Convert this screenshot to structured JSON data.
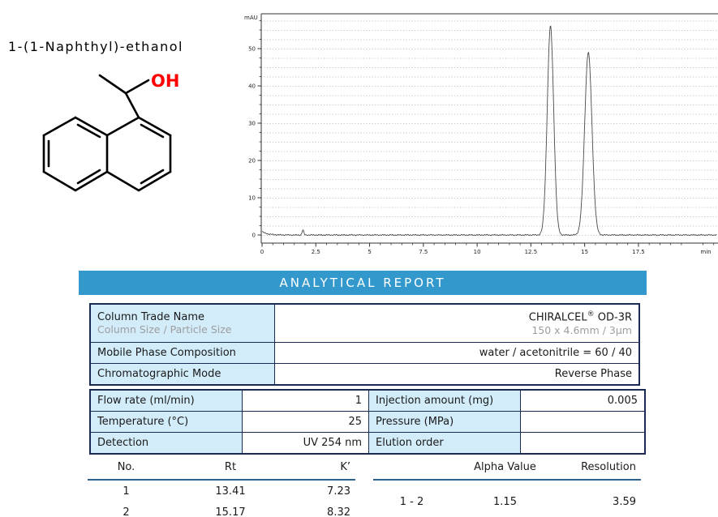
{
  "compound": {
    "title": "1-(1-Naphthyl)-ethanol",
    "hydroxyl_label": "OH",
    "hydroxyl_color": "#ff0000"
  },
  "chart_data": {
    "type": "line",
    "title": "",
    "xlabel": "min",
    "ylabel": "mAU",
    "xlim": [
      0,
      21.2
    ],
    "ylim": [
      -2,
      59
    ],
    "x_ticks": [
      0,
      2.5,
      5,
      7.5,
      10,
      12.5,
      15,
      17.5
    ],
    "x_minor_step": 0.5,
    "y_ticks": [
      0,
      10,
      20,
      30,
      40,
      50
    ],
    "y_minor_step": 2.5,
    "grid": "dotted-horizontal",
    "legend": "none",
    "line_color": "#4a4a4a",
    "series": [
      {
        "name": "UV 254 nm signal",
        "peaks": [
          {
            "rt": 13.41,
            "height": 56,
            "sigma": 0.15
          },
          {
            "rt": 15.17,
            "height": 49,
            "sigma": 0.17
          }
        ]
      }
    ],
    "minor_features": [
      {
        "rt": 1.9,
        "height": 1.3,
        "sigma": 0.04
      }
    ],
    "baseline": 0
  },
  "banner": {
    "title": "ANALYTICAL REPORT",
    "bg_color": "#3399cc"
  },
  "column_table": {
    "row1": {
      "label": "Column Trade Name",
      "sublabel": "Column Size / Particle Size",
      "value_prefix": "CHIRALCEL",
      "value_reg": "®",
      "value_suffix": " OD-3R",
      "subvalue": "150 x 4.6mm / 3µm"
    },
    "row2": {
      "label": "Mobile Phase Composition",
      "value": "water / acetonitrile = 60 / 40"
    },
    "row3": {
      "label": "Chromatographic Mode",
      "value": "Reverse Phase"
    }
  },
  "conditions_table": {
    "rows": [
      {
        "label1": "Flow rate (ml/min)",
        "value1": "1",
        "label2": "Injection amount (mg)",
        "value2": "0.005"
      },
      {
        "label1": "Temperature (°C)",
        "value1": "25",
        "label2": "Pressure (MPa)",
        "value2": ""
      },
      {
        "label1": "Detection",
        "value1": "UV 254 nm",
        "label2": "Elution order",
        "value2": ""
      }
    ]
  },
  "results": {
    "left": {
      "headers": [
        "No.",
        "Rt",
        "K’"
      ],
      "rows": [
        [
          "1",
          "13.41",
          "7.23"
        ],
        [
          "2",
          "15.17",
          "8.32"
        ]
      ]
    },
    "right": {
      "headers": [
        "",
        "Alpha Value",
        "Resolution"
      ],
      "rows": [
        [
          "1 - 2",
          "1.15",
          "3.59"
        ]
      ]
    }
  }
}
